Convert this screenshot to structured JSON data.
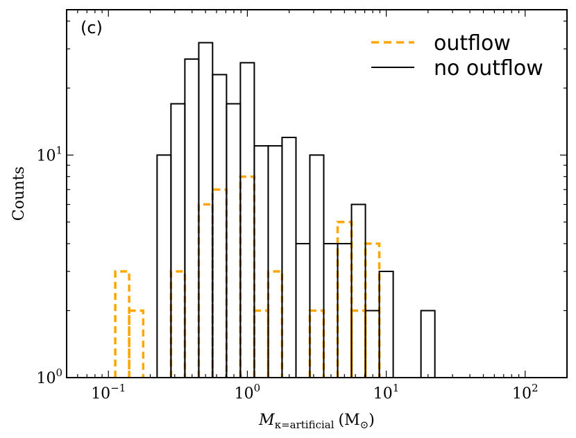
{
  "chart_data": {
    "type": "histogram",
    "panel_label": "(c)",
    "xscale": "log",
    "yscale": "log",
    "xlim": [
      0.05,
      200
    ],
    "ylim": [
      1,
      45
    ],
    "xlabel": "Mκ=artificial (M⊙)",
    "xlabel_parts": {
      "symbol": "M",
      "subscript": "κ=artificial",
      "unit": "(M",
      "unit_sub": "⊙",
      "unit_close": ")"
    },
    "ylabel": "Counts",
    "xticks": [
      {
        "value": 0.1,
        "base": "10",
        "exp": "−1"
      },
      {
        "value": 1,
        "base": "10",
        "exp": "0"
      },
      {
        "value": 10,
        "base": "10",
        "exp": "1"
      },
      {
        "value": 100,
        "base": "10",
        "exp": "2"
      }
    ],
    "yticks": [
      {
        "value": 1,
        "base": "10",
        "exp": "0"
      },
      {
        "value": 10,
        "base": "10",
        "exp": "1"
      }
    ],
    "legend_position": "top-right",
    "series": [
      {
        "name": "outflow",
        "color": "#FFA500",
        "style": "dashed",
        "bins": [
          {
            "x0": 0.112,
            "x1": 0.141,
            "count": 3
          },
          {
            "x0": 0.141,
            "x1": 0.178,
            "count": 2
          },
          {
            "x0": 0.282,
            "x1": 0.355,
            "count": 3
          },
          {
            "x0": 0.447,
            "x1": 0.562,
            "count": 6
          },
          {
            "x0": 0.562,
            "x1": 0.708,
            "count": 7
          },
          {
            "x0": 0.891,
            "x1": 1.122,
            "count": 8
          },
          {
            "x0": 1.122,
            "x1": 1.413,
            "count": 2
          },
          {
            "x0": 1.413,
            "x1": 1.778,
            "count": 3
          },
          {
            "x0": 2.818,
            "x1": 3.548,
            "count": 2
          },
          {
            "x0": 4.467,
            "x1": 5.623,
            "count": 5
          },
          {
            "x0": 5.623,
            "x1": 7.079,
            "count": 2
          },
          {
            "x0": 7.079,
            "x1": 8.913,
            "count": 4
          }
        ]
      },
      {
        "name": "no outflow",
        "color": "#000000",
        "style": "solid",
        "bins": [
          {
            "x0": 0.224,
            "x1": 0.282,
            "count": 10
          },
          {
            "x0": 0.282,
            "x1": 0.355,
            "count": 17
          },
          {
            "x0": 0.355,
            "x1": 0.447,
            "count": 27
          },
          {
            "x0": 0.447,
            "x1": 0.562,
            "count": 32
          },
          {
            "x0": 0.562,
            "x1": 0.708,
            "count": 23
          },
          {
            "x0": 0.708,
            "x1": 0.891,
            "count": 17
          },
          {
            "x0": 0.891,
            "x1": 1.122,
            "count": 26
          },
          {
            "x0": 1.122,
            "x1": 1.413,
            "count": 11
          },
          {
            "x0": 1.413,
            "x1": 1.778,
            "count": 11
          },
          {
            "x0": 1.778,
            "x1": 2.239,
            "count": 12
          },
          {
            "x0": 2.239,
            "x1": 2.818,
            "count": 4
          },
          {
            "x0": 2.818,
            "x1": 3.548,
            "count": 10
          },
          {
            "x0": 3.548,
            "x1": 4.467,
            "count": 4
          },
          {
            "x0": 4.467,
            "x1": 5.623,
            "count": 4
          },
          {
            "x0": 5.623,
            "x1": 7.079,
            "count": 6
          },
          {
            "x0": 7.079,
            "x1": 8.913,
            "count": 2
          },
          {
            "x0": 8.913,
            "x1": 11.22,
            "count": 3
          },
          {
            "x0": 17.78,
            "x1": 22.39,
            "count": 2
          }
        ]
      }
    ]
  }
}
